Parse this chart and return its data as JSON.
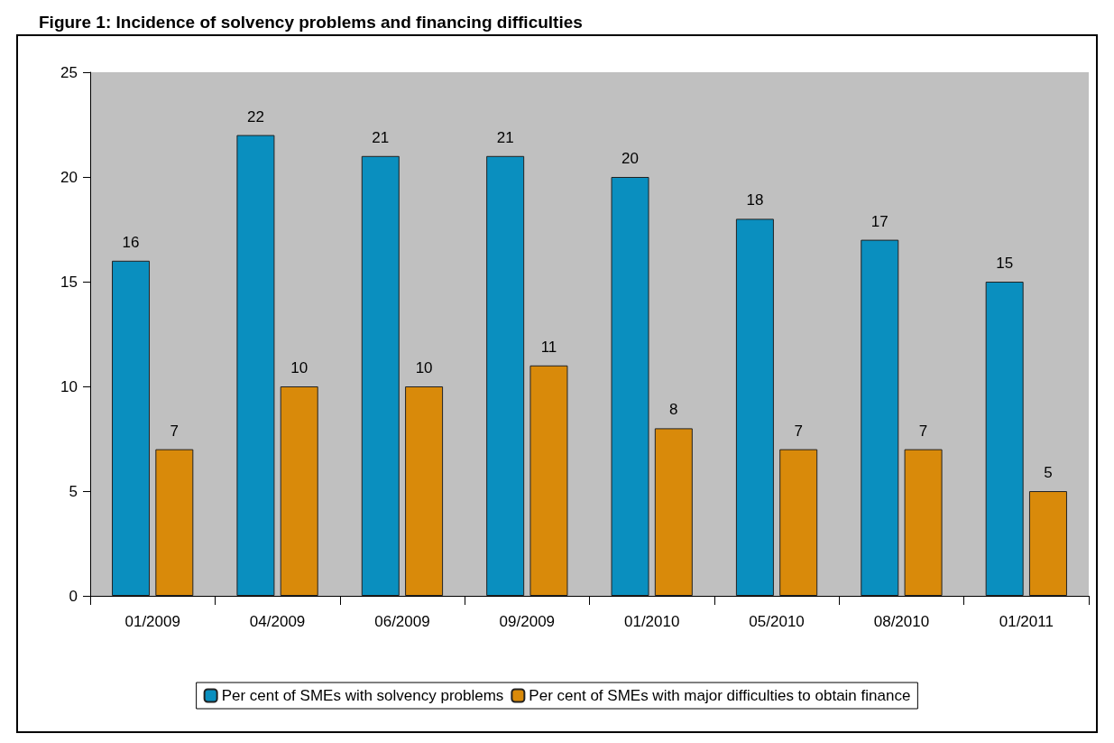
{
  "chart_data": {
    "type": "bar",
    "title": "Figure 1: Incidence of solvency problems and financing difficulties",
    "categories": [
      "01/2009",
      "04/2009",
      "06/2009",
      "09/2009",
      "01/2010",
      "05/2010",
      "08/2010",
      "01/2011"
    ],
    "series": [
      {
        "name": "Per cent of SMEs with solvency problems",
        "color": "#0a8fbf",
        "values": [
          16,
          22,
          21,
          21,
          20,
          18,
          17,
          15
        ]
      },
      {
        "name": "Per cent of SMEs with major difficulties to obtain finance",
        "color": "#d98a0a",
        "values": [
          7,
          10,
          10,
          11,
          8,
          7,
          7,
          5
        ]
      }
    ],
    "ylim": [
      0,
      25
    ],
    "yticks": [
      0,
      5,
      10,
      15,
      20,
      25
    ],
    "data_labels": true,
    "grid": false,
    "legend": "bottom"
  }
}
